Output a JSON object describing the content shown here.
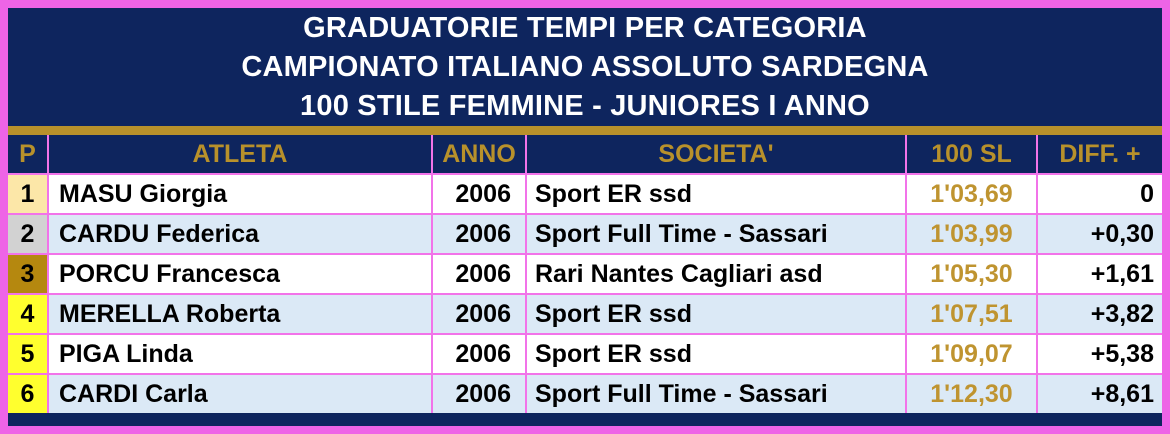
{
  "title": {
    "line1": "GRADUATORIE TEMPI PER CATEGORIA",
    "line2": "CAMPIONATO ITALIANO ASSOLUTO SARDEGNA",
    "line3": "100 STILE FEMMINE - JUNIORES I ANNO"
  },
  "table": {
    "headers": {
      "pos": "P",
      "athlete": "ATLETA",
      "year": "ANNO",
      "club": "SOCIETA'",
      "time": "100 SL",
      "diff": "DIFF. +"
    },
    "rows": [
      {
        "pos": "1",
        "athlete": "MASU Giorgia",
        "year": "2006",
        "club": "Sport ER ssd",
        "time": "1'03,69",
        "diff": "0",
        "pos_bg": "#fce7a8"
      },
      {
        "pos": "2",
        "athlete": "CARDU Federica",
        "year": "2006",
        "club": "Sport Full Time - Sassari",
        "time": "1'03,99",
        "diff": "+0,30",
        "pos_bg": "#d2d2d2"
      },
      {
        "pos": "3",
        "athlete": "PORCU Francesca",
        "year": "2006",
        "club": "Rari Nantes Cagliari asd",
        "time": "1'05,30",
        "diff": "+1,61",
        "pos_bg": "#b5880f"
      },
      {
        "pos": "4",
        "athlete": "MERELLA Roberta",
        "year": "2006",
        "club": "Sport ER ssd",
        "time": "1'07,51",
        "diff": "+3,82",
        "pos_bg": "#ffff2e"
      },
      {
        "pos": "5",
        "athlete": "PIGA Linda",
        "year": "2006",
        "club": "Sport ER ssd",
        "time": "1'09,07",
        "diff": "+5,38",
        "pos_bg": "#ffff2e"
      },
      {
        "pos": "6",
        "athlete": "CARDI Carla",
        "year": "2006",
        "club": "Sport Full Time - Sassari",
        "time": "1'12,30",
        "diff": "+8,61",
        "pos_bg": "#ffff2e"
      }
    ]
  },
  "colors": {
    "navy": "#0e255e",
    "gold_accent": "#b8912b",
    "time_gold": "#bf9430",
    "border_magenta": "#ee64e6",
    "grid_pink": "#f273e9",
    "row_odd": "#ffffff",
    "row_even": "#dbe9f6",
    "pos_gold": "#fce7a8",
    "pos_silver": "#d2d2d2",
    "pos_bronze": "#b5880f",
    "pos_yellow": "#ffff2e"
  }
}
